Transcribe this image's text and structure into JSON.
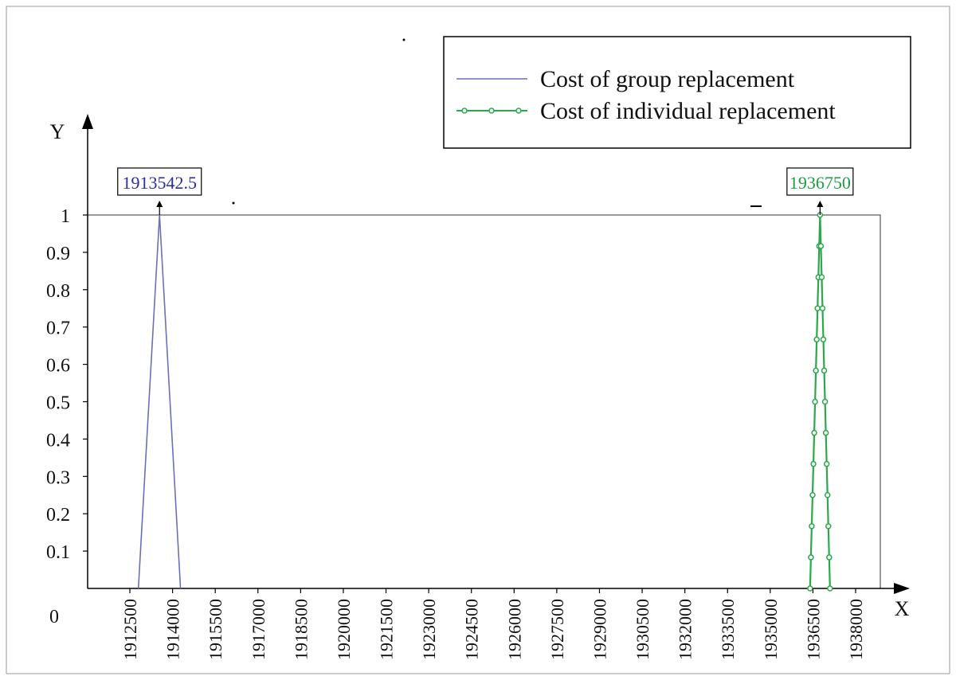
{
  "chart_data": {
    "type": "line",
    "xlabel": "X",
    "ylabel": "Y",
    "origin_label": "0",
    "xlim": [
      1911500,
      1939000
    ],
    "ylim": [
      0,
      1.0
    ],
    "x_ticks": [
      1912500,
      1914000,
      1915500,
      1917000,
      1918500,
      1920000,
      1921500,
      1923000,
      1924500,
      1926000,
      1927500,
      1929000,
      1930500,
      1932000,
      1933500,
      1935000,
      1936500,
      1938000
    ],
    "x_tick_labels": [
      "1912500",
      "1914000",
      "1915500",
      "1917000",
      "1918500",
      "1920000",
      "1921500",
      "1923000",
      "1924500",
      "1926000",
      "1927500",
      "1929000",
      "1930500",
      "1932000",
      "1933500",
      "1935000",
      "1936500",
      "1938000"
    ],
    "y_ticks": [
      0.1,
      0.2,
      0.3,
      0.4,
      0.5,
      0.6,
      0.7,
      0.8,
      0.9,
      1
    ],
    "y_tick_labels": [
      "0.1",
      "0.2",
      "0.3",
      "0.4",
      "0.5",
      "0.6",
      "0.7",
      "0.8",
      "0.9",
      "1"
    ],
    "legend_position": "top-right",
    "series": [
      {
        "name": "Cost of group replacement",
        "color": "#6b6fb5",
        "marker": "none",
        "x": [
          1912800,
          1913542.5,
          1914280
        ],
        "y": [
          0,
          1,
          0
        ]
      },
      {
        "name": "Cost of individual replacement",
        "color": "#2aa84a",
        "marker": "circle",
        "x": [
          1936400,
          1936750,
          1937100
        ],
        "y": [
          0,
          1,
          0
        ],
        "marker_step": 0.0833
      }
    ],
    "annotations": [
      {
        "text": "1913542.5",
        "x": 1913542.5,
        "y": 1,
        "color": "#2b2f9a"
      },
      {
        "text": "1936750",
        "x": 1936750,
        "y": 1,
        "color": "#1e9e44"
      }
    ]
  }
}
